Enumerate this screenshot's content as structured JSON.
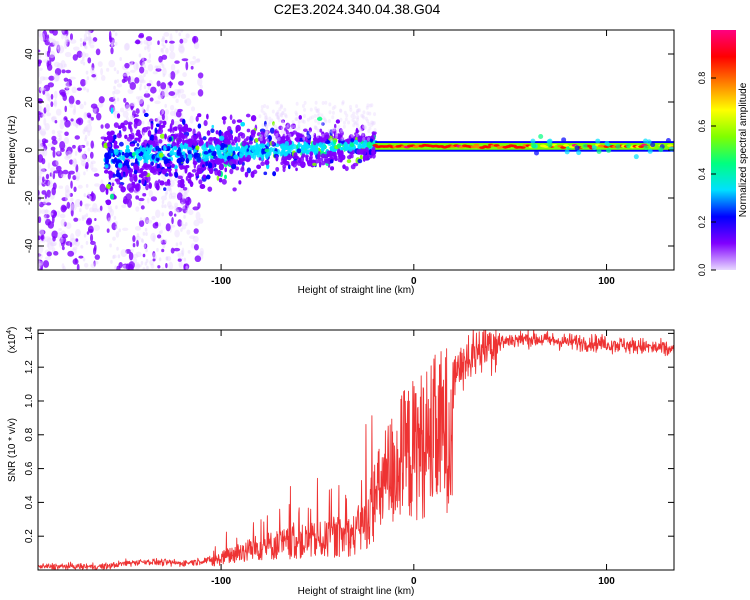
{
  "figure": {
    "title": "C2E3.2024.340.04.38.G04"
  },
  "chart_data": [
    {
      "type": "heatmap",
      "xlabel": "Height of straight line (km)",
      "ylabel": "Frequency (Hz)",
      "xlim": [
        -195,
        135
      ],
      "ylim": [
        -50,
        50
      ],
      "xticks": [
        -100,
        0,
        100
      ],
      "yticks": [
        -40,
        -20,
        0,
        20,
        40
      ],
      "colorbar": {
        "label": "Normalized spectral amplitude",
        "range": [
          0,
          1
        ],
        "ticks": [
          "0.0",
          "0.2",
          "0.4",
          "0.6",
          "0.8"
        ],
        "colors": [
          "#e8d8ff",
          "#8000ff",
          "#0000ff",
          "#00e0ff",
          "#00ff80",
          "#80ff00",
          "#ffff00",
          "#ff8000",
          "#ff0000",
          "#ff0080"
        ]
      },
      "features": {
        "noise_region_x": [
          -195,
          -110
        ],
        "onset_x": -160,
        "spread_start_hz": 10,
        "spread_end_hz": 4,
        "narrow_band_x": [
          -20,
          135
        ],
        "narrow_band_freq_hz": 1.5
      }
    },
    {
      "type": "line",
      "xlabel": "Height of straight line (km)",
      "ylabel": "SNR (10 * v/v)",
      "yscale_label": "(x10",
      "yscale_exp": "4",
      "yscale_close": ")",
      "xlim": [
        -195,
        135
      ],
      "ylim": [
        0,
        1.42
      ],
      "xticks": [
        -100,
        0,
        100
      ],
      "yticks": [
        "0.2",
        "0.4",
        "0.6",
        "0.8",
        "1.0",
        "1.2",
        "1.4"
      ],
      "color": "#ee3333",
      "envelope": {
        "x": [
          -195,
          -160,
          -150,
          -140,
          -120,
          -105,
          -95,
          -80,
          -60,
          -40,
          -30,
          -25,
          -20,
          -15,
          -10,
          -5,
          0,
          10,
          20,
          30,
          40,
          50,
          60,
          80,
          100,
          120,
          135
        ],
        "y": [
          0.02,
          0.02,
          0.04,
          0.05,
          0.04,
          0.06,
          0.12,
          0.18,
          0.22,
          0.25,
          0.28,
          0.38,
          0.55,
          0.7,
          0.82,
          0.9,
          0.95,
          1.05,
          1.15,
          1.28,
          1.34,
          1.36,
          1.37,
          1.35,
          1.34,
          1.32,
          1.3
        ]
      }
    }
  ]
}
